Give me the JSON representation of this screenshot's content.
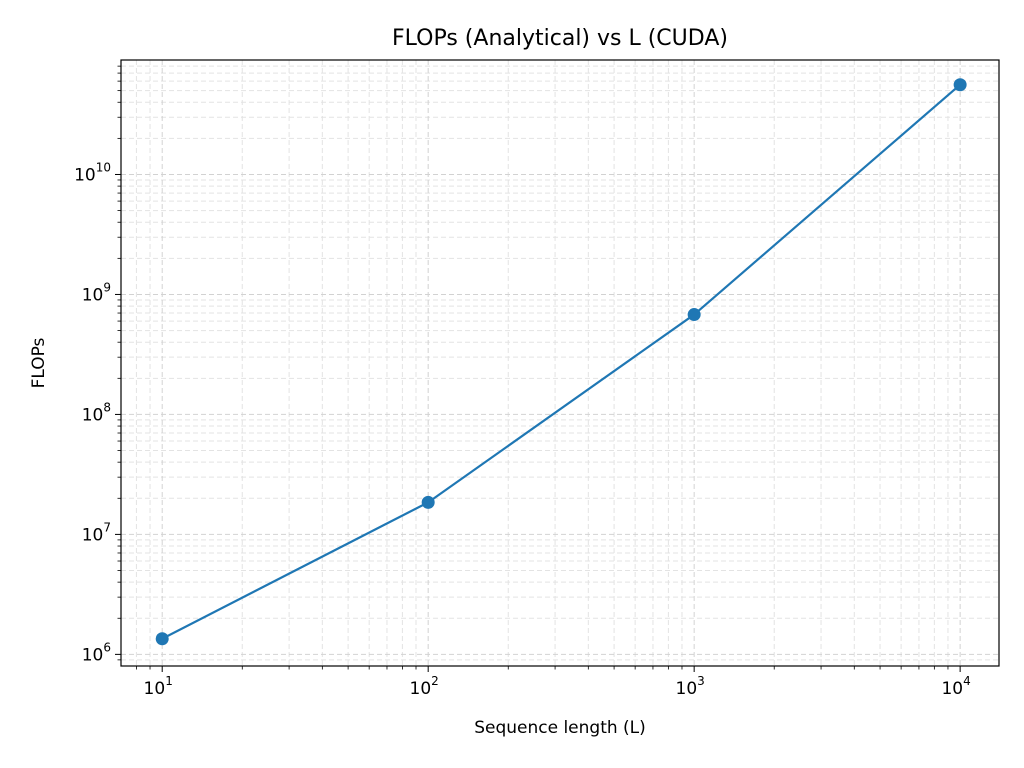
{
  "chart_data": {
    "type": "line",
    "title": "FLOPs (Analytical) vs L (CUDA)",
    "xlabel": "Sequence length (L)",
    "ylabel": "FLOPs",
    "x_scale": "log",
    "y_scale": "log",
    "grid": true,
    "grid_style": "dashed, major and minor",
    "xlim": [
      7,
      14000
    ],
    "ylim": [
      800000,
      90000000000
    ],
    "x_ticks": [
      {
        "base": "10",
        "exp": "1",
        "value": 10
      },
      {
        "base": "10",
        "exp": "2",
        "value": 100
      },
      {
        "base": "10",
        "exp": "3",
        "value": 1000
      },
      {
        "base": "10",
        "exp": "4",
        "value": 10000
      }
    ],
    "y_ticks": [
      {
        "base": "10",
        "exp": "6",
        "value": 1000000
      },
      {
        "base": "10",
        "exp": "7",
        "value": 10000000
      },
      {
        "base": "10",
        "exp": "8",
        "value": 100000000
      },
      {
        "base": "10",
        "exp": "9",
        "value": 1000000000
      },
      {
        "base": "10",
        "exp": "10",
        "value": 10000000000
      }
    ],
    "series": [
      {
        "color": "#1f77b4",
        "marker": "circle",
        "x": [
          10,
          100,
          1000,
          10000
        ],
        "y": [
          1350000,
          18500000,
          680000000,
          56000000000
        ]
      }
    ]
  }
}
